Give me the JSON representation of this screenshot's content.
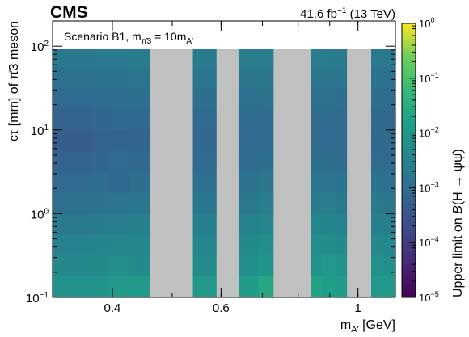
{
  "header": {
    "experiment": "CMS",
    "luminosity_base": "41.6 fb",
    "luminosity_exp": "−1",
    "energy": " (13 TeV)"
  },
  "chart_data": {
    "type": "heatmap",
    "scenario_label": {
      "text": "Scenario B1, m",
      "sub": "π̄3",
      "rest": " = 10m",
      "rest_sub": "A′"
    },
    "xlabel": {
      "base": "m",
      "sub": "A′",
      "rest": " [GeV]"
    },
    "ylabel": {
      "text": "cτ [mm] of π̄3 meson"
    },
    "zlabel": {
      "text": "Upper limit on ",
      "italic": "B",
      "rest": "(H → ψψ̄)"
    },
    "x_scale": "log",
    "y_scale": "log",
    "z_scale": "log",
    "xlim": [
      0.32,
      1.15
    ],
    "ylim": [
      0.1,
      200
    ],
    "zlim": [
      1e-05,
      1
    ],
    "x_ticks": [
      {
        "v": 0.4,
        "label": "0.4"
      },
      {
        "v": 0.6,
        "label": "0.6"
      },
      {
        "v": 1.0,
        "label": "1"
      }
    ],
    "y_ticks": [
      {
        "v": 0.1,
        "base": "10",
        "exp": "−1"
      },
      {
        "v": 1,
        "base": "10",
        "exp": "0"
      },
      {
        "v": 10,
        "base": "10",
        "exp": "1"
      },
      {
        "v": 100,
        "base": "10",
        "exp": "2"
      }
    ],
    "z_ticks": [
      {
        "v": 1e-05,
        "base": "10",
        "exp": "−5"
      },
      {
        "v": 0.0001,
        "base": "10",
        "exp": "−4"
      },
      {
        "v": 0.001,
        "base": "10",
        "exp": "−3"
      },
      {
        "v": 0.01,
        "base": "10",
        "exp": "−2"
      },
      {
        "v": 0.1,
        "base": "10",
        "exp": "−1"
      },
      {
        "v": 1,
        "base": "10",
        "exp": "0"
      }
    ],
    "x_bin_edges": [
      0.32,
      0.34,
      0.37,
      0.395,
      0.425,
      0.46,
      0.5,
      0.54,
      0.59,
      0.64,
      0.69,
      0.73,
      0.84,
      0.875,
      0.92,
      0.96,
      1.05,
      1.1,
      1.15
    ],
    "y_bin_edges": [
      0.1,
      0.18,
      0.32,
      0.56,
      1.0,
      1.8,
      3.2,
      5.6,
      10,
      18,
      32,
      56,
      100
    ],
    "excluded_mass_windows": [
      [
        0.46,
        0.54
      ],
      [
        0.59,
        0.64
      ],
      [
        0.73,
        0.84
      ],
      [
        0.96,
        1.05
      ]
    ],
    "grey_band_color": "#c0c0c0",
    "limits_log10": [
      [
        -2.1,
        -2.1,
        -2.1,
        -2.0,
        -2.0,
        null,
        null,
        -2.0,
        null,
        -1.9,
        -1.6,
        null,
        -1.75,
        -1.85,
        -1.9,
        null,
        -2.0,
        -2.0
      ],
      [
        -2.35,
        -2.35,
        -2.3,
        -2.2,
        -2.3,
        null,
        null,
        -2.25,
        null,
        -2.2,
        -2.05,
        null,
        -2.1,
        -2.0,
        -2.1,
        null,
        -2.15,
        -2.2
      ],
      [
        -2.5,
        -2.5,
        -2.45,
        -2.4,
        -2.4,
        null,
        null,
        -2.4,
        null,
        -2.3,
        -2.2,
        null,
        -2.2,
        -2.25,
        -2.3,
        null,
        -2.35,
        -2.35
      ],
      [
        -2.7,
        -2.7,
        -2.65,
        -2.6,
        -2.55,
        null,
        null,
        -2.55,
        null,
        -2.5,
        -2.4,
        null,
        -2.4,
        -2.45,
        -2.5,
        null,
        -2.55,
        -2.6
      ],
      [
        -2.9,
        -2.9,
        -2.85,
        -2.8,
        -2.75,
        null,
        null,
        -2.75,
        null,
        -2.7,
        -2.6,
        null,
        -2.65,
        -2.6,
        -2.7,
        null,
        -2.7,
        -2.75
      ],
      [
        -3.05,
        -3.05,
        -3.0,
        -3.1,
        -2.95,
        null,
        null,
        -2.9,
        null,
        -2.85,
        -2.75,
        null,
        -2.8,
        -2.8,
        -2.85,
        null,
        -2.85,
        -2.9
      ],
      [
        -3.2,
        -3.2,
        -3.15,
        -3.05,
        -3.1,
        null,
        null,
        -3.05,
        null,
        -3.0,
        -2.95,
        null,
        -2.95,
        -2.95,
        -3.0,
        null,
        -3.0,
        -3.05
      ],
      [
        -3.3,
        -3.3,
        -3.25,
        -3.2,
        -3.15,
        null,
        null,
        -3.1,
        null,
        -3.05,
        -3.0,
        null,
        -3.0,
        -3.05,
        -3.05,
        null,
        -3.1,
        -3.1
      ],
      [
        -3.2,
        -3.2,
        -3.15,
        -3.1,
        -3.1,
        null,
        null,
        -3.05,
        null,
        -3.0,
        -3.0,
        null,
        -3.0,
        -3.0,
        -3.05,
        null,
        -3.05,
        -3.1
      ],
      [
        -3.05,
        -3.05,
        -3.0,
        -3.0,
        -2.95,
        null,
        null,
        -2.95,
        null,
        -2.9,
        -2.85,
        null,
        -2.9,
        -2.9,
        -2.95,
        null,
        -2.95,
        -3.0
      ],
      [
        -2.9,
        -2.9,
        -2.85,
        -2.85,
        -2.8,
        null,
        null,
        -2.8,
        null,
        -2.75,
        -2.75,
        null,
        -2.75,
        -2.8,
        -2.8,
        null,
        -2.85,
        -2.85
      ],
      [
        -2.75,
        -2.75,
        -2.7,
        -2.7,
        -2.65,
        null,
        null,
        -2.65,
        null,
        -2.6,
        -2.6,
        null,
        -2.6,
        -2.65,
        -2.7,
        null,
        -2.7,
        -2.7
      ]
    ]
  }
}
